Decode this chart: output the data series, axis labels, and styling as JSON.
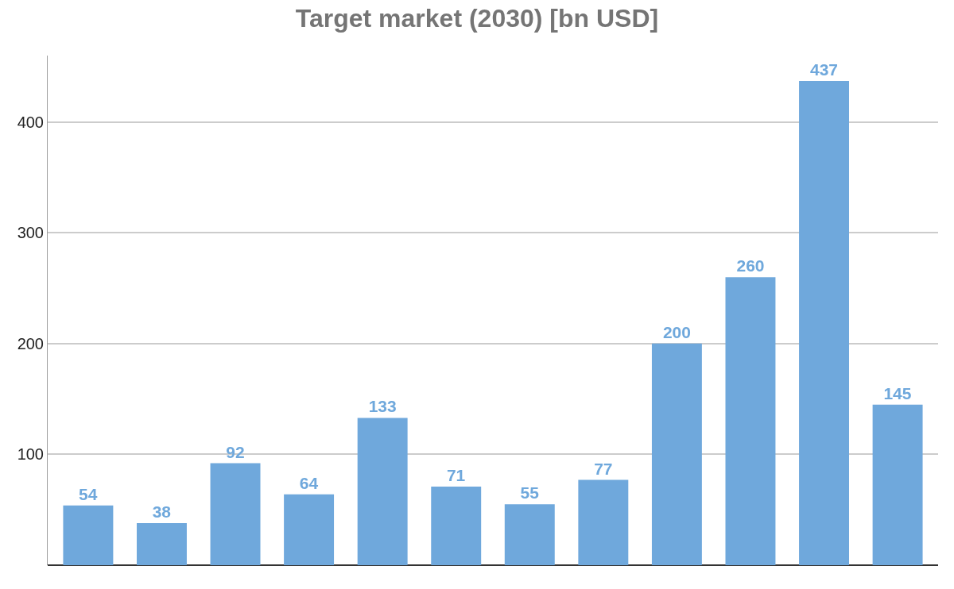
{
  "chart_data": {
    "type": "bar",
    "title": "Target market (2030) [bn USD]",
    "categories": [
      null,
      null,
      null,
      null,
      null,
      null,
      null,
      null,
      null,
      null,
      null,
      null
    ],
    "values": [
      54,
      38,
      92,
      64,
      133,
      71,
      55,
      77,
      200,
      260,
      437,
      145
    ],
    "color": "#6fa8dc",
    "ylim": [
      0,
      460
    ],
    "yticks": [
      100,
      200,
      300,
      400
    ],
    "grid": "y",
    "data_labels": true
  }
}
